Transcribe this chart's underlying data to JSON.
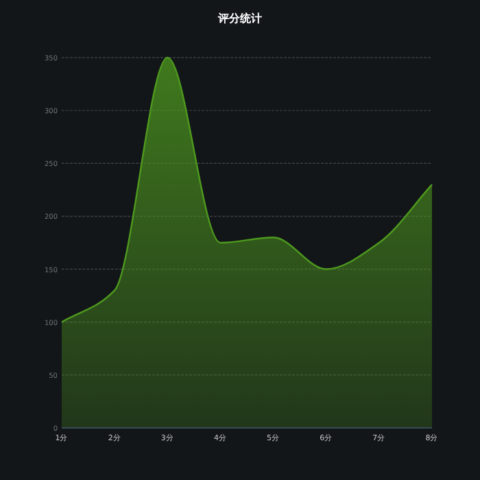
{
  "chart_data": {
    "type": "area",
    "title": "评分统计",
    "categories": [
      "1分",
      "2分",
      "3分",
      "4分",
      "5分",
      "6分",
      "7分",
      "8分"
    ],
    "values": [
      100,
      130,
      350,
      175,
      180,
      150,
      175,
      230
    ],
    "color": "#4e9a1e",
    "ylim": [
      0,
      350
    ],
    "yticks": [
      0,
      50,
      100,
      150,
      200,
      250,
      300,
      350
    ],
    "grid": "y"
  }
}
